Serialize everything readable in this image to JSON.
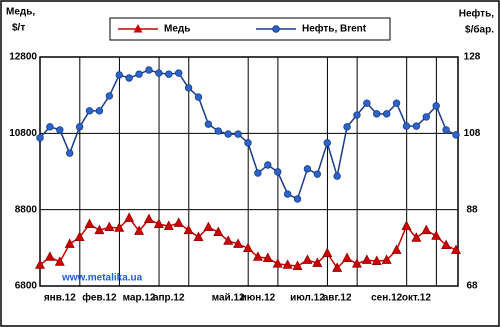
{
  "chart_data": {
    "type": "line",
    "ylabel": [
      "Медь,",
      "$/т"
    ],
    "y2label": [
      "Нефть,",
      "$/бар."
    ],
    "watermark": "www.metalika.ua",
    "categories": [
      null,
      null,
      "янв.12",
      null,
      null,
      null,
      "фев.12",
      null,
      null,
      null,
      "мар.12",
      null,
      null,
      "апр.12",
      null,
      null,
      null,
      null,
      null,
      "май.12",
      null,
      null,
      "июн.12",
      null,
      null,
      null,
      null,
      "июл.12",
      null,
      null,
      "авг.12",
      null,
      null,
      null,
      null,
      "сен.12",
      null,
      null,
      "окт.12",
      null,
      null,
      null,
      null
    ],
    "series": [
      {
        "name": "Медь",
        "color": "#cc0000",
        "marker": "triangle",
        "values": [
          7350,
          7560,
          7430,
          7900,
          8080,
          8420,
          8260,
          8340,
          8320,
          8580,
          8240,
          8550,
          8420,
          8370,
          8450,
          8260,
          8080,
          8340,
          8210,
          7980,
          7900,
          7790,
          7560,
          7530,
          7380,
          7350,
          7320,
          7480,
          7400,
          7660,
          7270,
          7530,
          7380,
          7480,
          7450,
          7480,
          7740,
          8370,
          8060,
          8260,
          8110,
          7870,
          7740
        ]
      },
      {
        "name": "Нефть, Brent",
        "color": "#1a3a8a",
        "marker": "circle",
        "axis": "y2",
        "values": [
          106.8,
          109.7,
          108.9,
          102.8,
          109.7,
          113.9,
          113.9,
          117.8,
          123.3,
          122.5,
          123.5,
          124.6,
          123.8,
          123.5,
          123.8,
          119.9,
          117.5,
          110.4,
          108.6,
          107.8,
          107.8,
          105.5,
          97.6,
          99.7,
          97.9,
          92.1,
          90.8,
          98.7,
          97.3,
          105.5,
          96.8,
          109.7,
          112.8,
          115.9,
          113.1,
          113.1,
          115.9,
          109.9,
          109.9,
          112.3,
          115.2,
          108.9,
          107.6
        ]
      }
    ],
    "ylim": [
      6800,
      12800
    ],
    "yticks": [
      6800,
      8800,
      10800,
      12800
    ],
    "y2lim": [
      68,
      128
    ],
    "y2ticks": [
      68,
      88,
      108,
      128
    ],
    "grid": true,
    "legend": "top"
  }
}
